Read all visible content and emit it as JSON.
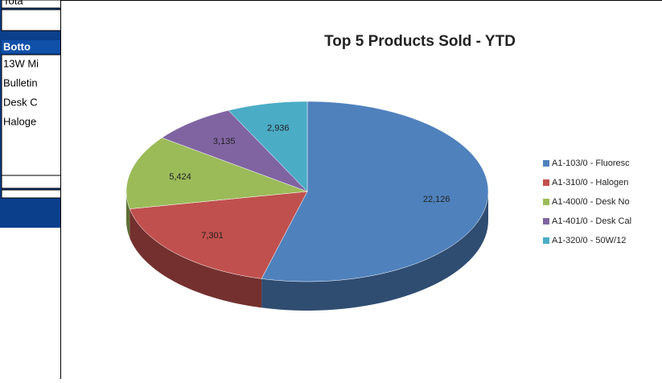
{
  "background_table": {
    "top_row": "Tota",
    "header": "Botto",
    "rows": [
      "13W Mi",
      "Bulletin",
      "Desk C",
      "Haloge"
    ]
  },
  "chart_data": {
    "type": "pie",
    "title": "Top 5 Products Sold - YTD",
    "categories": [
      "A1-103/0 - Fluoresc",
      "A1-310/0 - Halogen",
      "A1-400/0 - Desk No",
      "A1-401/0 - Desk Cal",
      "A1-320/0 - 50W/12"
    ],
    "values": [
      22126,
      7301,
      5424,
      3135,
      2936
    ],
    "value_labels": [
      "22,126",
      "7,301",
      "5,424",
      "3,135",
      "2,936"
    ],
    "colors": [
      "#4f81bd",
      "#c0504d",
      "#9bbb59",
      "#8064a2",
      "#4bacc6"
    ],
    "legend": "right"
  }
}
